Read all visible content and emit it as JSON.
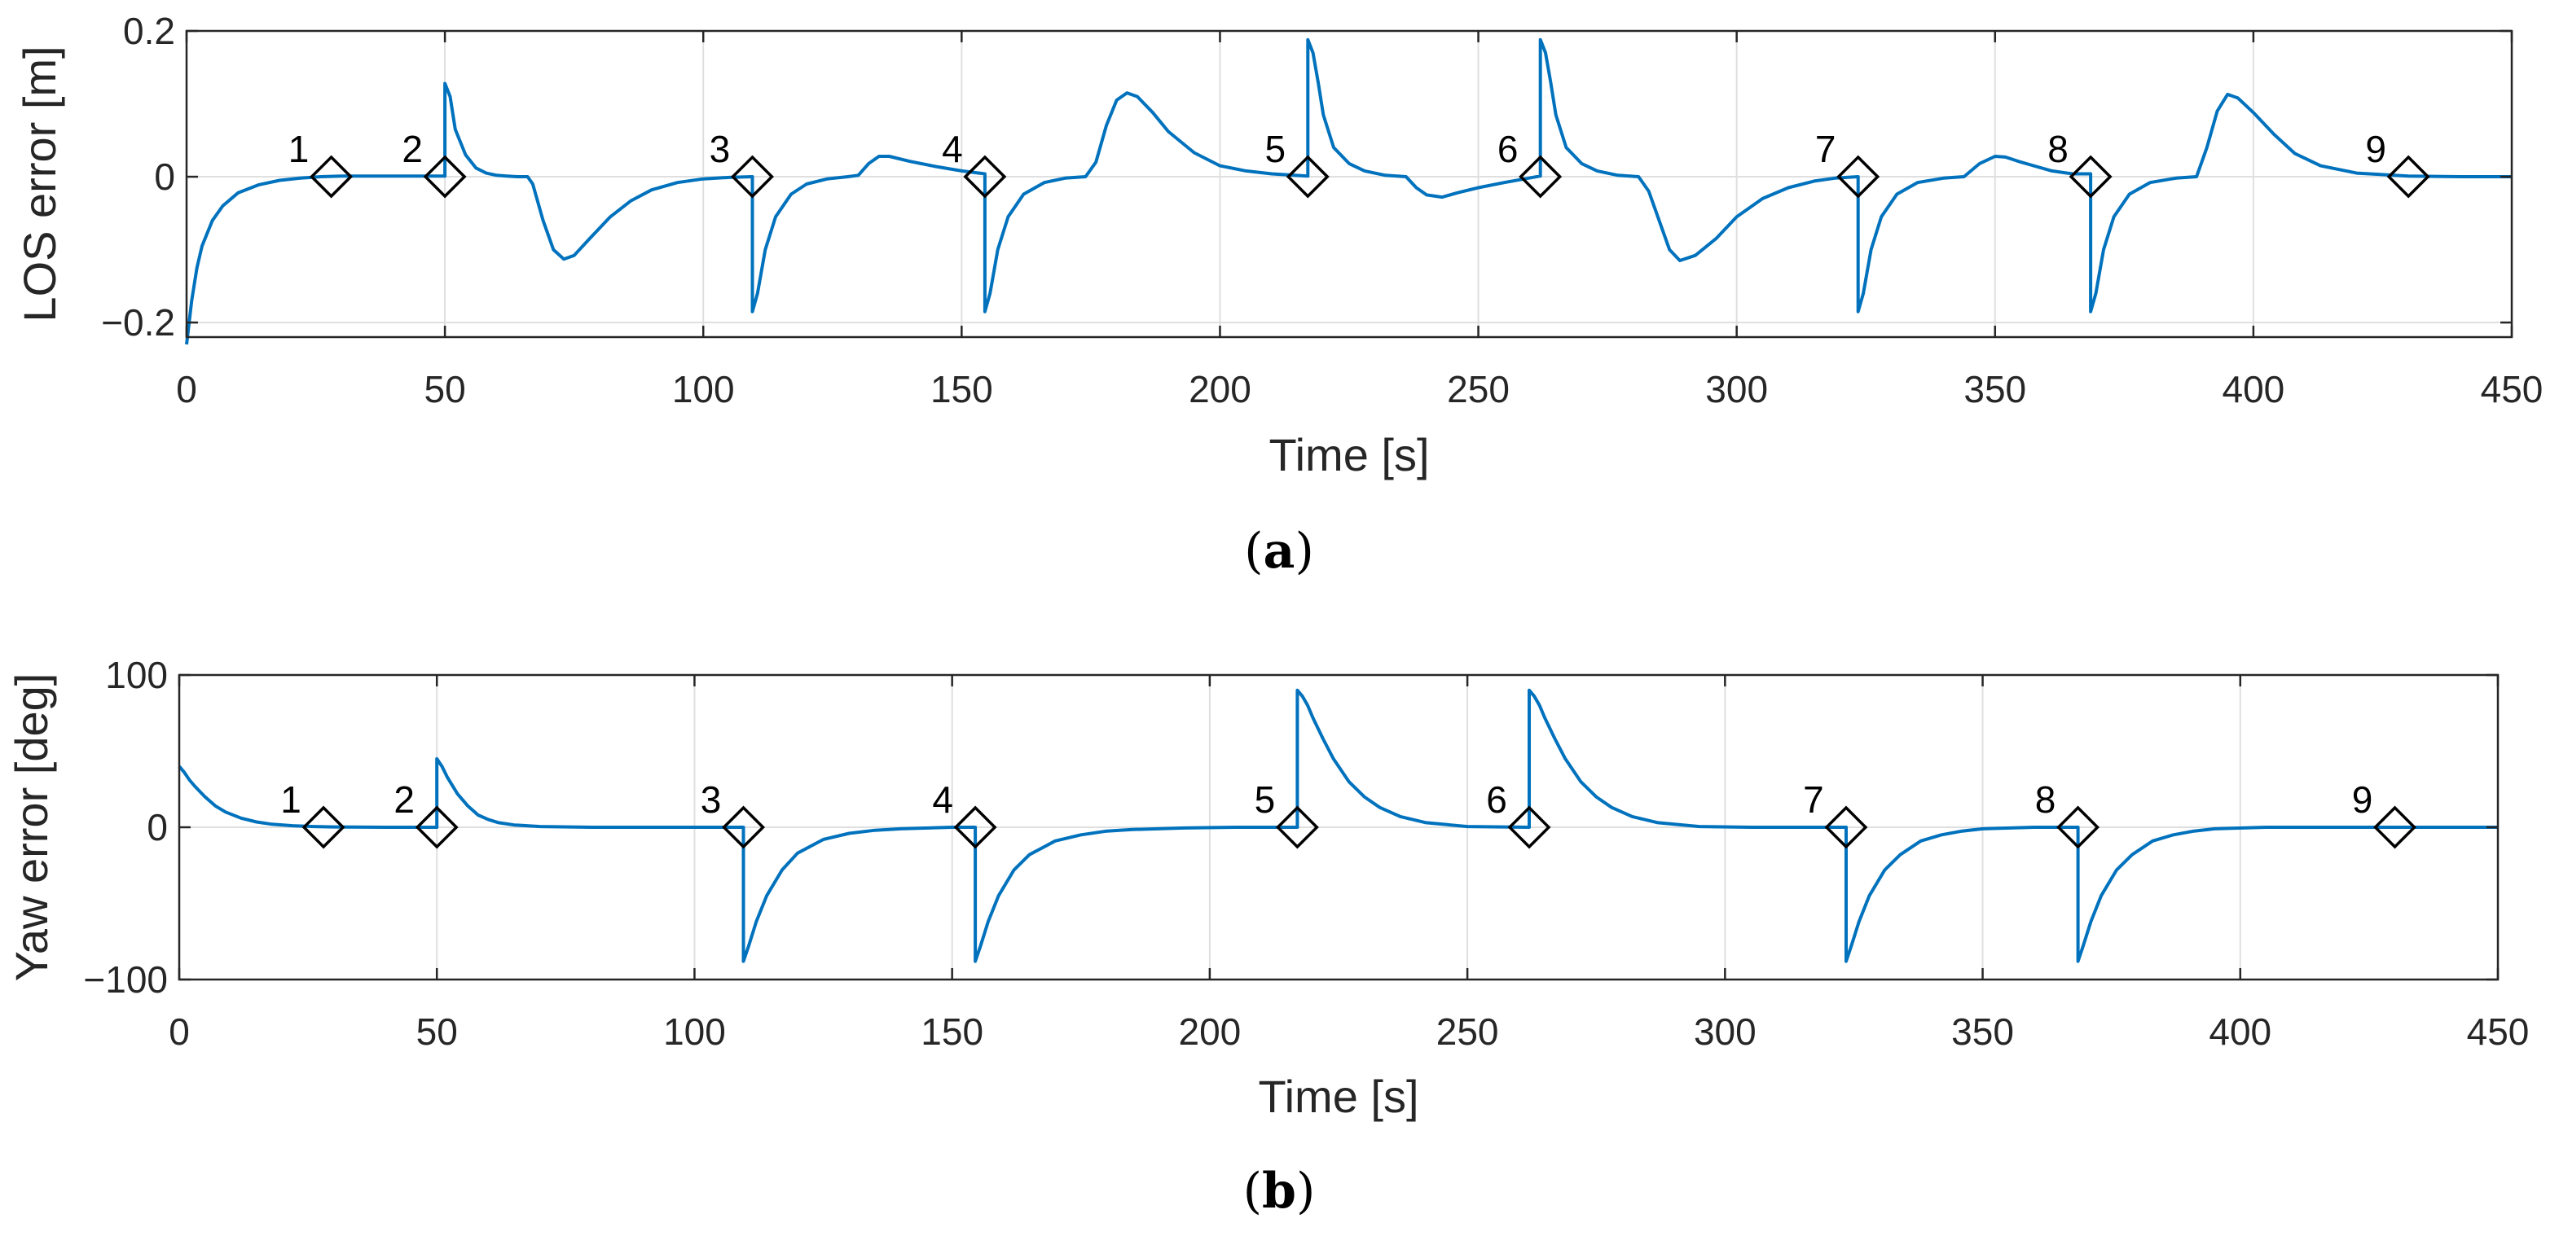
{
  "chart_data": [
    {
      "type": "line",
      "panel_label": "a",
      "caption_open": "(",
      "caption_close": ")",
      "title": "",
      "xlabel": "Time [s]",
      "ylabel": "LOS error [m]",
      "xlim": [
        0,
        450
      ],
      "ylim": [
        -0.22,
        0.2
      ],
      "xticks": [
        0,
        50,
        100,
        150,
        200,
        250,
        300,
        350,
        400,
        450
      ],
      "xtick_labels": [
        "0",
        "50",
        "100",
        "150",
        "200",
        "250",
        "300",
        "350",
        "400",
        "450"
      ],
      "yticks": [
        -0.2,
        0,
        0.2
      ],
      "ytick_labels": [
        "−0.2",
        "0",
        "0.2"
      ],
      "grid": true,
      "line_color": "#0072BD",
      "series": [
        {
          "name": "LOS error",
          "x": [
            0,
            1,
            2,
            3,
            5,
            7,
            10,
            14,
            18,
            22,
            26,
            30,
            35,
            40,
            45,
            50,
            50,
            51,
            52,
            54,
            56,
            58,
            60,
            62,
            64,
            66,
            67,
            69,
            71,
            73,
            75,
            78,
            82,
            86,
            90,
            95,
            100,
            105,
            109.5,
            109.5,
            110.5,
            112,
            114,
            117,
            120,
            124,
            128,
            130,
            132,
            134,
            136,
            140,
            145,
            150,
            154.5,
            154.5,
            155.5,
            157,
            159,
            162,
            166,
            170,
            174,
            176,
            178,
            180,
            182,
            184,
            187,
            190,
            195,
            200,
            205,
            210,
            217,
            217,
            218,
            219,
            220,
            222,
            225,
            228,
            232,
            236,
            238,
            240,
            243,
            246,
            250,
            255,
            262,
            262,
            263,
            264,
            265,
            267,
            270,
            273,
            277,
            281,
            283,
            285,
            287,
            289,
            292,
            296,
            300,
            305,
            310,
            315,
            319,
            323.5,
            323.5,
            324.5,
            326,
            328,
            331,
            335,
            340,
            344,
            347,
            350,
            352,
            355,
            358,
            361,
            365,
            368.5,
            368.5,
            369.5,
            371,
            373,
            376,
            380,
            385,
            389,
            391,
            393,
            395,
            397,
            400,
            404,
            408,
            413,
            420,
            430,
            440,
            450
          ],
          "y": [
            -0.23,
            -0.17,
            -0.125,
            -0.095,
            -0.06,
            -0.04,
            -0.022,
            -0.011,
            -0.005,
            -0.002,
            0,
            0.001,
            0.001,
            0.001,
            0.001,
            0.001,
            0.128,
            0.11,
            0.065,
            0.03,
            0.012,
            0.005,
            0.002,
            0.001,
            0,
            0,
            -0.01,
            -0.06,
            -0.1,
            -0.113,
            -0.108,
            -0.085,
            -0.055,
            -0.033,
            -0.018,
            -0.008,
            -0.003,
            -0.001,
            0,
            -0.185,
            -0.16,
            -0.1,
            -0.055,
            -0.024,
            -0.01,
            -0.003,
            0,
            0.002,
            0.018,
            0.028,
            0.028,
            0.021,
            0.014,
            0.008,
            0.004,
            -0.185,
            -0.16,
            -0.1,
            -0.055,
            -0.024,
            -0.008,
            -0.002,
            0,
            0.02,
            0.07,
            0.105,
            0.115,
            0.11,
            0.088,
            0.062,
            0.033,
            0.015,
            0.008,
            0.004,
            0.001,
            0.188,
            0.17,
            0.13,
            0.085,
            0.04,
            0.018,
            0.008,
            0.002,
            0,
            -0.015,
            -0.025,
            -0.028,
            -0.022,
            -0.015,
            -0.008,
            0.001,
            0.188,
            0.17,
            0.13,
            0.085,
            0.04,
            0.018,
            0.008,
            0.002,
            0,
            -0.02,
            -0.06,
            -0.1,
            -0.115,
            -0.108,
            -0.085,
            -0.055,
            -0.03,
            -0.015,
            -0.006,
            -0.002,
            0,
            -0.185,
            -0.16,
            -0.1,
            -0.055,
            -0.024,
            -0.008,
            -0.002,
            0,
            0.018,
            0.028,
            0.027,
            0.02,
            0.014,
            0.008,
            0.004,
            0.004,
            -0.185,
            -0.16,
            -0.1,
            -0.055,
            -0.024,
            -0.008,
            -0.002,
            0,
            0.04,
            0.09,
            0.113,
            0.108,
            0.088,
            0.058,
            0.032,
            0.015,
            0.005,
            0.001,
            0,
            0
          ]
        }
      ],
      "waypoint_markers": [
        {
          "label": "1",
          "x": 28,
          "y": 0
        },
        {
          "label": "2",
          "x": 50,
          "y": 0
        },
        {
          "label": "3",
          "x": 109.5,
          "y": 0
        },
        {
          "label": "4",
          "x": 154.5,
          "y": 0
        },
        {
          "label": "5",
          "x": 217,
          "y": 0
        },
        {
          "label": "6",
          "x": 262,
          "y": 0
        },
        {
          "label": "7",
          "x": 323.5,
          "y": 0
        },
        {
          "label": "8",
          "x": 368.5,
          "y": 0
        },
        {
          "label": "9",
          "x": 430,
          "y": 0
        }
      ]
    },
    {
      "type": "line",
      "panel_label": "b",
      "caption_open": "(",
      "caption_close": ")",
      "title": "",
      "xlabel": "Time [s]",
      "ylabel": "Yaw error [deg]",
      "xlim": [
        0,
        450
      ],
      "ylim": [
        -100,
        100
      ],
      "xticks": [
        0,
        50,
        100,
        150,
        200,
        250,
        300,
        350,
        400,
        450
      ],
      "xtick_labels": [
        "0",
        "50",
        "100",
        "150",
        "200",
        "250",
        "300",
        "350",
        "400",
        "450"
      ],
      "yticks": [
        -100,
        0,
        100
      ],
      "ytick_labels": [
        "−100",
        "0",
        "100"
      ],
      "grid": true,
      "line_color": "#0072BD",
      "series": [
        {
          "name": "Yaw error",
          "x": [
            0,
            1,
            2,
            3,
            5,
            7,
            9,
            12,
            15,
            18,
            22,
            26,
            30,
            40,
            50,
            50,
            51,
            52,
            54,
            56,
            58,
            60,
            62,
            65,
            70,
            80,
            90,
            100,
            109.5,
            109.5,
            110.5,
            112,
            114,
            117,
            120,
            125,
            130,
            135,
            140,
            150,
            154.5,
            154.5,
            155.5,
            157,
            159,
            162,
            165,
            170,
            175,
            180,
            185,
            195,
            205,
            217,
            217,
            218,
            219,
            220,
            222,
            224,
            227,
            230,
            233,
            237,
            242,
            250,
            262,
            262,
            263,
            264,
            265,
            267,
            269,
            272,
            275,
            278,
            282,
            287,
            295,
            305,
            315,
            323.5,
            323.5,
            324.5,
            326,
            328,
            331,
            334,
            338,
            342,
            346,
            350,
            360,
            368.5,
            368.5,
            369.5,
            371,
            373,
            376,
            379,
            383,
            387,
            391,
            395,
            405,
            420,
            430,
            440,
            450
          ],
          "y": [
            40,
            36,
            31,
            27,
            20,
            14,
            10,
            6,
            3.5,
            2,
            1,
            0.5,
            0.2,
            0,
            0,
            45,
            40,
            33,
            22,
            14,
            8,
            5,
            3,
            1.5,
            0.5,
            0,
            0,
            0,
            0,
            -88,
            -78,
            -62,
            -45,
            -28,
            -17,
            -8,
            -4,
            -2,
            -1,
            0,
            0,
            -88,
            -78,
            -62,
            -45,
            -28,
            -18,
            -9,
            -5,
            -2.5,
            -1.5,
            -0.5,
            0,
            0,
            90,
            86,
            80,
            72,
            58,
            45,
            30,
            20,
            13,
            7,
            3,
            0.5,
            0,
            90,
            86,
            80,
            72,
            58,
            45,
            30,
            20,
            13,
            7,
            3,
            0.5,
            0,
            0,
            0,
            -88,
            -78,
            -62,
            -45,
            -28,
            -18,
            -9,
            -5,
            -2.5,
            -1,
            0,
            0,
            -88,
            -78,
            -62,
            -45,
            -28,
            -18,
            -9,
            -5,
            -2.5,
            -1,
            0,
            0,
            0,
            0,
            0
          ]
        }
      ],
      "waypoint_markers": [
        {
          "label": "1",
          "x": 28,
          "y": 0
        },
        {
          "label": "2",
          "x": 50,
          "y": 0
        },
        {
          "label": "3",
          "x": 109.5,
          "y": 0
        },
        {
          "label": "4",
          "x": 154.5,
          "y": 0
        },
        {
          "label": "5",
          "x": 217,
          "y": 0
        },
        {
          "label": "6",
          "x": 262,
          "y": 0
        },
        {
          "label": "7",
          "x": 323.5,
          "y": 0
        },
        {
          "label": "8",
          "x": 368.5,
          "y": 0
        },
        {
          "label": "9",
          "x": 430,
          "y": 0
        }
      ]
    }
  ]
}
